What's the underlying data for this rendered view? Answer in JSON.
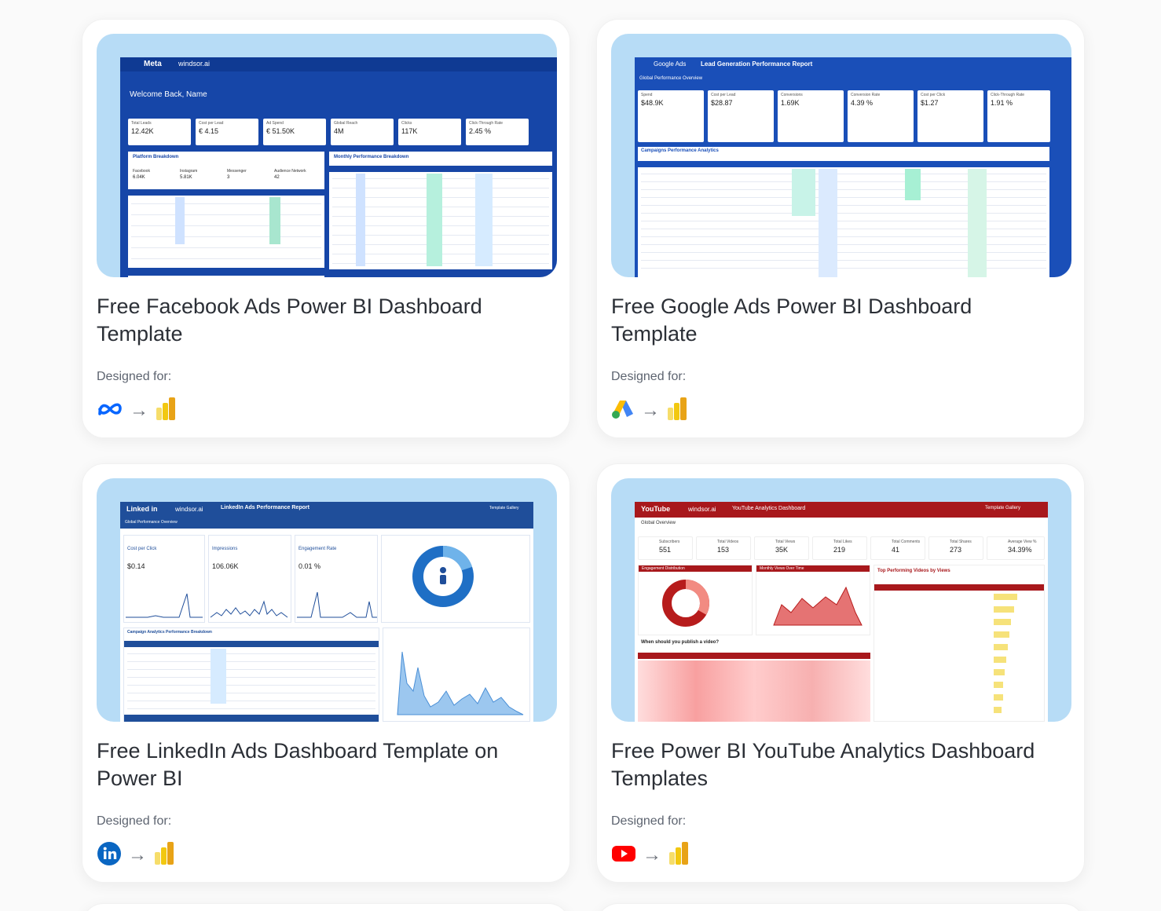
{
  "cards": [
    {
      "title": "Free Facebook Ads Power BI Dashboard Template",
      "designed_for": "Designed for:",
      "source_icon": "meta-icon",
      "target_icon": "power-bi-icon",
      "preview": {
        "brand": "Meta",
        "partner": "windsor.ai",
        "welcome": "Welcome Back, Name",
        "kpis": [
          {
            "label": "Total Leads",
            "value": "12.42K"
          },
          {
            "label": "Cost per Lead",
            "value": "€ 4.15"
          },
          {
            "label": "Ad Spend",
            "value": "€ 51.50K"
          },
          {
            "label": "Global Reach",
            "value": "4M"
          },
          {
            "label": "Clicks",
            "value": "117K"
          },
          {
            "label": "Click-Through Rate",
            "value": "2.45 %"
          }
        ],
        "section_left": "Platform Breakdown",
        "section_right": "Monthly Performance Breakdown",
        "platforms": [
          {
            "label": "Facebook",
            "value": "6.04K"
          },
          {
            "label": "Instagram",
            "value": "5.81K"
          },
          {
            "label": "Messenger",
            "value": "3"
          },
          {
            "label": "Audience Network",
            "value": "42"
          }
        ]
      }
    },
    {
      "title": "Free Google Ads Power BI Dashboard Template",
      "designed_for": "Designed for:",
      "source_icon": "google-ads-icon",
      "target_icon": "power-bi-icon",
      "preview": {
        "brand": "Google Ads",
        "report": "Lead Generation Performance Report",
        "overview": "Global Performance Overview",
        "kpis": [
          {
            "label": "Spend",
            "value": "$48.9K"
          },
          {
            "label": "Cost per Lead",
            "value": "$28.87"
          },
          {
            "label": "Conversions",
            "value": "1.69K"
          },
          {
            "label": "Conversion Rate",
            "value": "4.39 %"
          },
          {
            "label": "Cost per Click",
            "value": "$1.27"
          },
          {
            "label": "Click-Through Rate",
            "value": "1.91 %"
          }
        ],
        "section": "Campaigns Performance Analytics"
      }
    },
    {
      "title": "Free LinkedIn Ads Dashboard Template on Power BI",
      "designed_for": "Designed for:",
      "source_icon": "linkedin-icon",
      "target_icon": "power-bi-icon",
      "preview": {
        "brand": "Linked in",
        "partner": "windsor.ai",
        "report": "LinkedIn Ads Performance Report",
        "nav": "Template Gallery",
        "overview": "Global Performance Overview",
        "kpis": [
          {
            "label": "Cost per Click",
            "value": "$0.14"
          },
          {
            "label": "Impressions",
            "value": "106.06K"
          },
          {
            "label": "Engagement Rate",
            "value": "0.01 %"
          }
        ],
        "section": "Campaign Analytics Performance Breakdown"
      }
    },
    {
      "title": "Free Power BI YouTube Analytics Dashboard Templates",
      "designed_for": "Designed for:",
      "source_icon": "youtube-icon",
      "target_icon": "power-bi-icon",
      "preview": {
        "brand": "YouTube",
        "partner": "windsor.ai",
        "report": "YouTube Analytics Dashboard",
        "nav": "Template Gallery",
        "overview": "Global Overview",
        "kpis": [
          {
            "label": "Subscribers",
            "value": "551"
          },
          {
            "label": "Total Videos",
            "value": "153"
          },
          {
            "label": "Total Views",
            "value": "35K"
          },
          {
            "label": "Total Likes",
            "value": "219"
          },
          {
            "label": "Total Comments",
            "value": "41"
          },
          {
            "label": "Total Shares",
            "value": "273"
          },
          {
            "label": "Average View %",
            "value": "34.39%"
          }
        ],
        "section_a": "Engagement Distribution",
        "section_b": "Monthly Views Over Time",
        "section_c": "Top Performing Videos by Views",
        "section_d": "When should you publish a video?"
      }
    }
  ],
  "colors": {
    "thumb_bg": "#b7dcf6",
    "meta_blue": "#0866ff",
    "google_blue": "#4285f4",
    "google_yellow": "#fbbc04",
    "google_green": "#34a853",
    "linkedin_blue": "#0a66c2",
    "youtube_red": "#ff0000",
    "powerbi_yellow": "#f2c811"
  }
}
